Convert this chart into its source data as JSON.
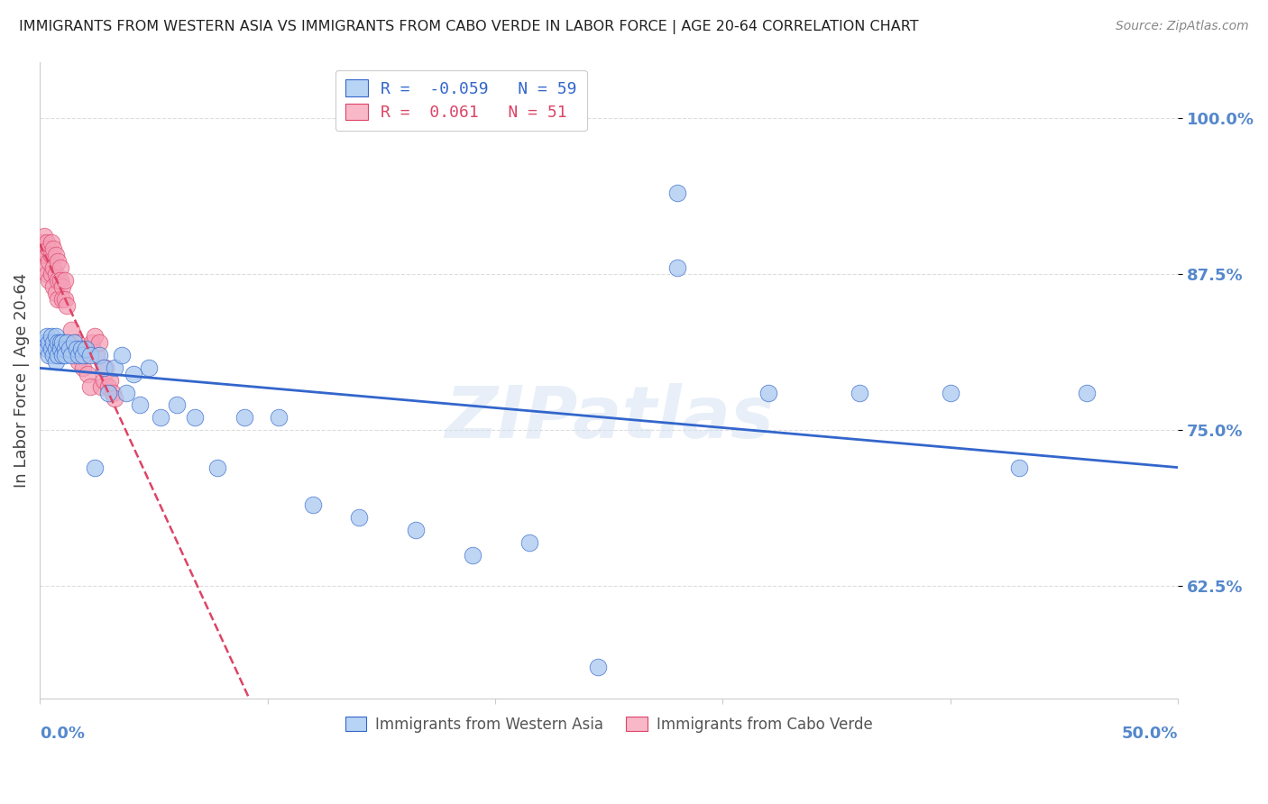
{
  "title": "IMMIGRANTS FROM WESTERN ASIA VS IMMIGRANTS FROM CABO VERDE IN LABOR FORCE | AGE 20-64 CORRELATION CHART",
  "source": "Source: ZipAtlas.com",
  "ylabel": "In Labor Force | Age 20-64",
  "yticks": [
    0.625,
    0.75,
    0.875,
    1.0
  ],
  "ytick_labels": [
    "62.5%",
    "75.0%",
    "87.5%",
    "100.0%"
  ],
  "xlim": [
    0.0,
    0.5
  ],
  "ylim": [
    0.535,
    1.045
  ],
  "western_asia_R": -0.059,
  "western_asia_N": 59,
  "cabo_verde_R": 0.061,
  "cabo_verde_N": 51,
  "western_asia_color": "#a8c8f0",
  "cabo_verde_color": "#f4a0b8",
  "trend_western_asia_color": "#3366cc",
  "trend_cabo_verde_color": "#dd4466",
  "background_color": "#ffffff",
  "grid_color": "#dddddd",
  "title_color": "#222222",
  "tick_label_color": "#5588cc",
  "legend_box_color_western": "#b8d4f4",
  "legend_box_color_cabo": "#f8b8c8",
  "watermark": "ZIPatlas",
  "western_asia_x": [
    0.002,
    0.003,
    0.003,
    0.004,
    0.004,
    0.005,
    0.005,
    0.006,
    0.006,
    0.007,
    0.007,
    0.007,
    0.008,
    0.008,
    0.009,
    0.009,
    0.01,
    0.01,
    0.011,
    0.011,
    0.012,
    0.013,
    0.014,
    0.015,
    0.016,
    0.017,
    0.018,
    0.019,
    0.02,
    0.022,
    0.024,
    0.026,
    0.028,
    0.03,
    0.033,
    0.036,
    0.038,
    0.041,
    0.044,
    0.048,
    0.053,
    0.06,
    0.068,
    0.078,
    0.09,
    0.105,
    0.12,
    0.14,
    0.165,
    0.19,
    0.215,
    0.245,
    0.28,
    0.32,
    0.36,
    0.4,
    0.43,
    0.46,
    0.28
  ],
  "western_asia_y": [
    0.82,
    0.815,
    0.825,
    0.81,
    0.82,
    0.815,
    0.825,
    0.81,
    0.82,
    0.815,
    0.825,
    0.805,
    0.82,
    0.81,
    0.82,
    0.815,
    0.81,
    0.82,
    0.815,
    0.81,
    0.82,
    0.815,
    0.81,
    0.82,
    0.815,
    0.81,
    0.815,
    0.81,
    0.815,
    0.81,
    0.72,
    0.81,
    0.8,
    0.78,
    0.8,
    0.81,
    0.78,
    0.795,
    0.77,
    0.8,
    0.76,
    0.77,
    0.76,
    0.72,
    0.76,
    0.76,
    0.69,
    0.68,
    0.67,
    0.65,
    0.66,
    0.56,
    0.88,
    0.78,
    0.78,
    0.78,
    0.72,
    0.78,
    0.94
  ],
  "cabo_verde_x": [
    0.001,
    0.001,
    0.002,
    0.002,
    0.002,
    0.003,
    0.003,
    0.003,
    0.004,
    0.004,
    0.004,
    0.005,
    0.005,
    0.005,
    0.006,
    0.006,
    0.006,
    0.007,
    0.007,
    0.007,
    0.008,
    0.008,
    0.008,
    0.009,
    0.009,
    0.01,
    0.01,
    0.011,
    0.011,
    0.012,
    0.013,
    0.014,
    0.015,
    0.016,
    0.017,
    0.018,
    0.019,
    0.02,
    0.021,
    0.022,
    0.023,
    0.024,
    0.025,
    0.026,
    0.027,
    0.028,
    0.029,
    0.03,
    0.031,
    0.032,
    0.033
  ],
  "cabo_verde_y": [
    0.9,
    0.89,
    0.905,
    0.895,
    0.88,
    0.9,
    0.89,
    0.875,
    0.895,
    0.885,
    0.87,
    0.9,
    0.89,
    0.875,
    0.895,
    0.88,
    0.865,
    0.89,
    0.875,
    0.86,
    0.885,
    0.87,
    0.855,
    0.88,
    0.87,
    0.865,
    0.855,
    0.87,
    0.855,
    0.85,
    0.82,
    0.83,
    0.81,
    0.82,
    0.805,
    0.815,
    0.8,
    0.81,
    0.795,
    0.785,
    0.82,
    0.825,
    0.81,
    0.82,
    0.785,
    0.79,
    0.8,
    0.785,
    0.79,
    0.78,
    0.775
  ]
}
